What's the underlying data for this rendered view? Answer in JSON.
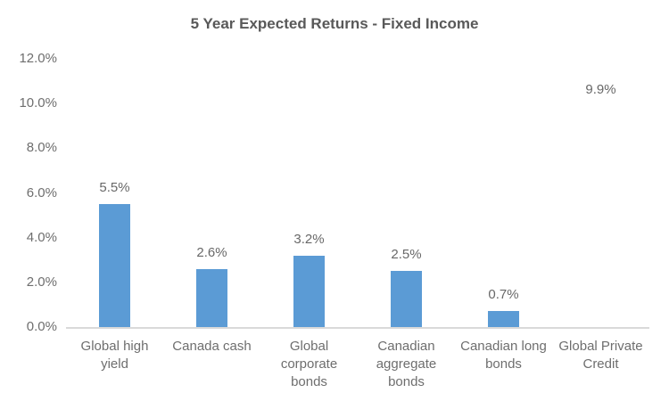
{
  "chart_data": {
    "type": "bar",
    "title": "5 Year Expected Returns - Fixed Income",
    "xlabel": "",
    "ylabel": "",
    "legend": "none",
    "grid": false,
    "categories": [
      "Global high yield",
      "Canada cash",
      "Global corporate bonds",
      "Canadian aggregate bonds",
      "Canadian long bonds",
      "Global Private Credit"
    ],
    "values": [
      5.5,
      2.6,
      3.2,
      2.5,
      0.7,
      9.9
    ],
    "points": [
      {
        "category_lines": [
          "Global high",
          "yield"
        ],
        "value": 5.5,
        "label": "5.5%",
        "show_bar": true
      },
      {
        "category_lines": [
          "Canada cash"
        ],
        "value": 2.6,
        "label": "2.6%",
        "show_bar": true
      },
      {
        "category_lines": [
          "Global",
          "corporate",
          "bonds"
        ],
        "value": 3.2,
        "label": "3.2%",
        "show_bar": true
      },
      {
        "category_lines": [
          "Canadian",
          "aggregate",
          "bonds"
        ],
        "value": 2.5,
        "label": "2.5%",
        "show_bar": true
      },
      {
        "category_lines": [
          "Canadian long",
          "bonds"
        ],
        "value": 0.7,
        "label": "0.7%",
        "show_bar": true
      },
      {
        "category_lines": [
          "Global Private",
          "Credit"
        ],
        "value": 9.9,
        "label": "9.9%",
        "show_bar": false
      }
    ],
    "y_axis": {
      "ticks": [
        "0.0%",
        "2.0%",
        "4.0%",
        "6.0%",
        "8.0%",
        "10.0%",
        "12.0%"
      ],
      "tick_values": [
        0,
        2,
        4,
        6,
        8,
        10,
        12
      ],
      "min": 0,
      "max": 12
    },
    "colors": {
      "bar": "#5B9BD5",
      "axis_line": "#D9D9D9",
      "title_text": "#595959",
      "label_text": "#6e6e6e",
      "background": "#FFFFFF"
    }
  }
}
